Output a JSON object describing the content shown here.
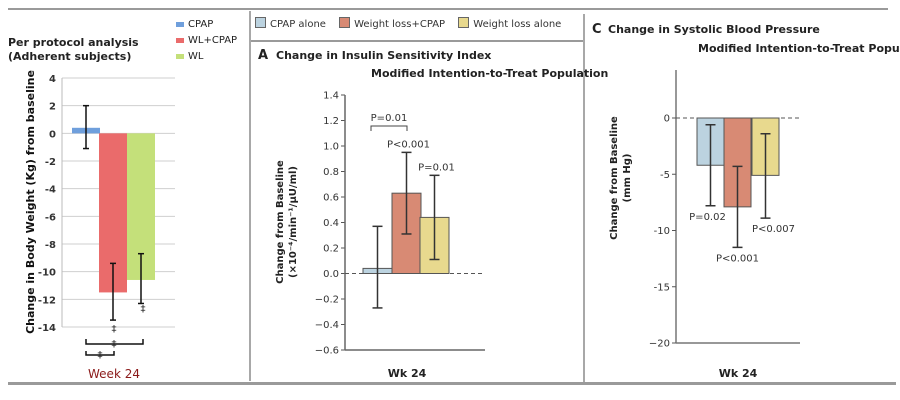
{
  "chart_data": [
    {
      "id": "left",
      "type": "bar",
      "title": "Per protocol analysis",
      "subtitle": "(Adherent subjects)",
      "xlabel": "Week 24",
      "ylabel": "Change in Body Weight (Kg) from baseline",
      "ylim": [
        -14,
        4
      ],
      "yticks": [
        4,
        2,
        0,
        -2,
        -4,
        -6,
        -8,
        -10,
        -12,
        -14
      ],
      "ytick_labels": [
        "4",
        "2",
        "0",
        "-2",
        "-4",
        "-6",
        "-8",
        "-10",
        "-12",
        "-14"
      ],
      "grid": true,
      "legend": "top-right",
      "categories": [
        "Week 24"
      ],
      "series": [
        {
          "name": "CPAP",
          "color": "#6f9fdc",
          "values": [
            0.4
          ],
          "err_low": [
            -1.1
          ],
          "err_high": [
            2.0
          ]
        },
        {
          "name": "WL+CPAP",
          "color": "#ea6b6b",
          "values": [
            -11.5
          ],
          "err_low": [
            -13.5
          ],
          "err_high": [
            -9.4
          ]
        },
        {
          "name": "WL",
          "color": "#c4e07a",
          "values": [
            -10.6
          ],
          "err_low": [
            -12.3
          ],
          "err_high": [
            -8.7
          ]
        }
      ],
      "annotations": [
        "‡",
        "‡",
        "‡",
        "‡"
      ]
    },
    {
      "id": "A",
      "type": "bar",
      "panel_letter": "A",
      "title": "Change in Insulin Sensitivity Index",
      "subtitle": "Modified Intention-to-Treat Population",
      "xlabel": "Wk 24",
      "ylabel_line1": "Change from Baseline",
      "ylabel_line2": "(×10⁻⁴/min⁻¹/μU/ml)",
      "ylim": [
        -0.6,
        1.4
      ],
      "yticks": [
        1.4,
        1.2,
        1.0,
        0.8,
        0.6,
        0.4,
        0.2,
        0.0,
        -0.2,
        -0.4,
        -0.6
      ],
      "ytick_labels": [
        "1.4",
        "1.2",
        "1.0",
        "0.8",
        "0.6",
        "0.4",
        "0.2",
        "0.0",
        "−0.2",
        "−0.4",
        "−0.6"
      ],
      "grid": false,
      "categories": [
        "Wk 24"
      ],
      "series": [
        {
          "name": "CPAP alone",
          "color": "#bcd3e0",
          "values": [
            0.04
          ],
          "err_low": [
            -0.27
          ],
          "err_high": [
            0.37
          ],
          "p": ""
        },
        {
          "name": "Weight loss+CPAP",
          "color": "#d88a74",
          "values": [
            0.63
          ],
          "err_low": [
            0.31
          ],
          "err_high": [
            0.95
          ],
          "p": "P<0.001"
        },
        {
          "name": "Weight loss alone",
          "color": "#e8d98e",
          "values": [
            0.44
          ],
          "err_low": [
            0.11
          ],
          "err_high": [
            0.77
          ],
          "p": "P=0.01"
        }
      ],
      "bracket_label": "P=0.01"
    },
    {
      "id": "C",
      "type": "bar",
      "panel_letter": "C",
      "title": "Change in Systolic Blood Pressure",
      "subtitle": "Modified Intention-to-Treat Population",
      "xlabel": "Wk 24",
      "ylabel_line1": "Change from Baseline",
      "ylabel_line2": "(mm Hg)",
      "ylim": [
        -20,
        0
      ],
      "yticks": [
        0,
        -5,
        -10,
        -15,
        -20
      ],
      "ytick_labels": [
        "0",
        "-5",
        "-10",
        "-15",
        "−20"
      ],
      "grid": false,
      "categories": [
        "Wk 24"
      ],
      "series": [
        {
          "name": "CPAP alone",
          "color": "#bcd3e0",
          "values": [
            -4.2
          ],
          "err_low": [
            -7.8
          ],
          "err_high": [
            -0.6
          ],
          "p": "P=0.02"
        },
        {
          "name": "Weight loss+CPAP",
          "color": "#d88a74",
          "values": [
            -7.9
          ],
          "err_low": [
            -11.5
          ],
          "err_high": [
            -4.3
          ],
          "p": "P<0.001"
        },
        {
          "name": "Weight loss alone",
          "color": "#e8d98e",
          "values": [
            -5.1
          ],
          "err_low": [
            -8.9
          ],
          "err_high": [
            -1.4
          ],
          "p": "P<0.007"
        }
      ]
    }
  ],
  "legend_left": [
    "CPAP",
    "WL+CPAP",
    "WL"
  ],
  "legend_top": [
    "CPAP alone",
    "Weight loss+CPAP",
    "Weight loss alone"
  ],
  "colors": {
    "week_label": "#8b1a1a",
    "divider": "#9a9a9a"
  }
}
